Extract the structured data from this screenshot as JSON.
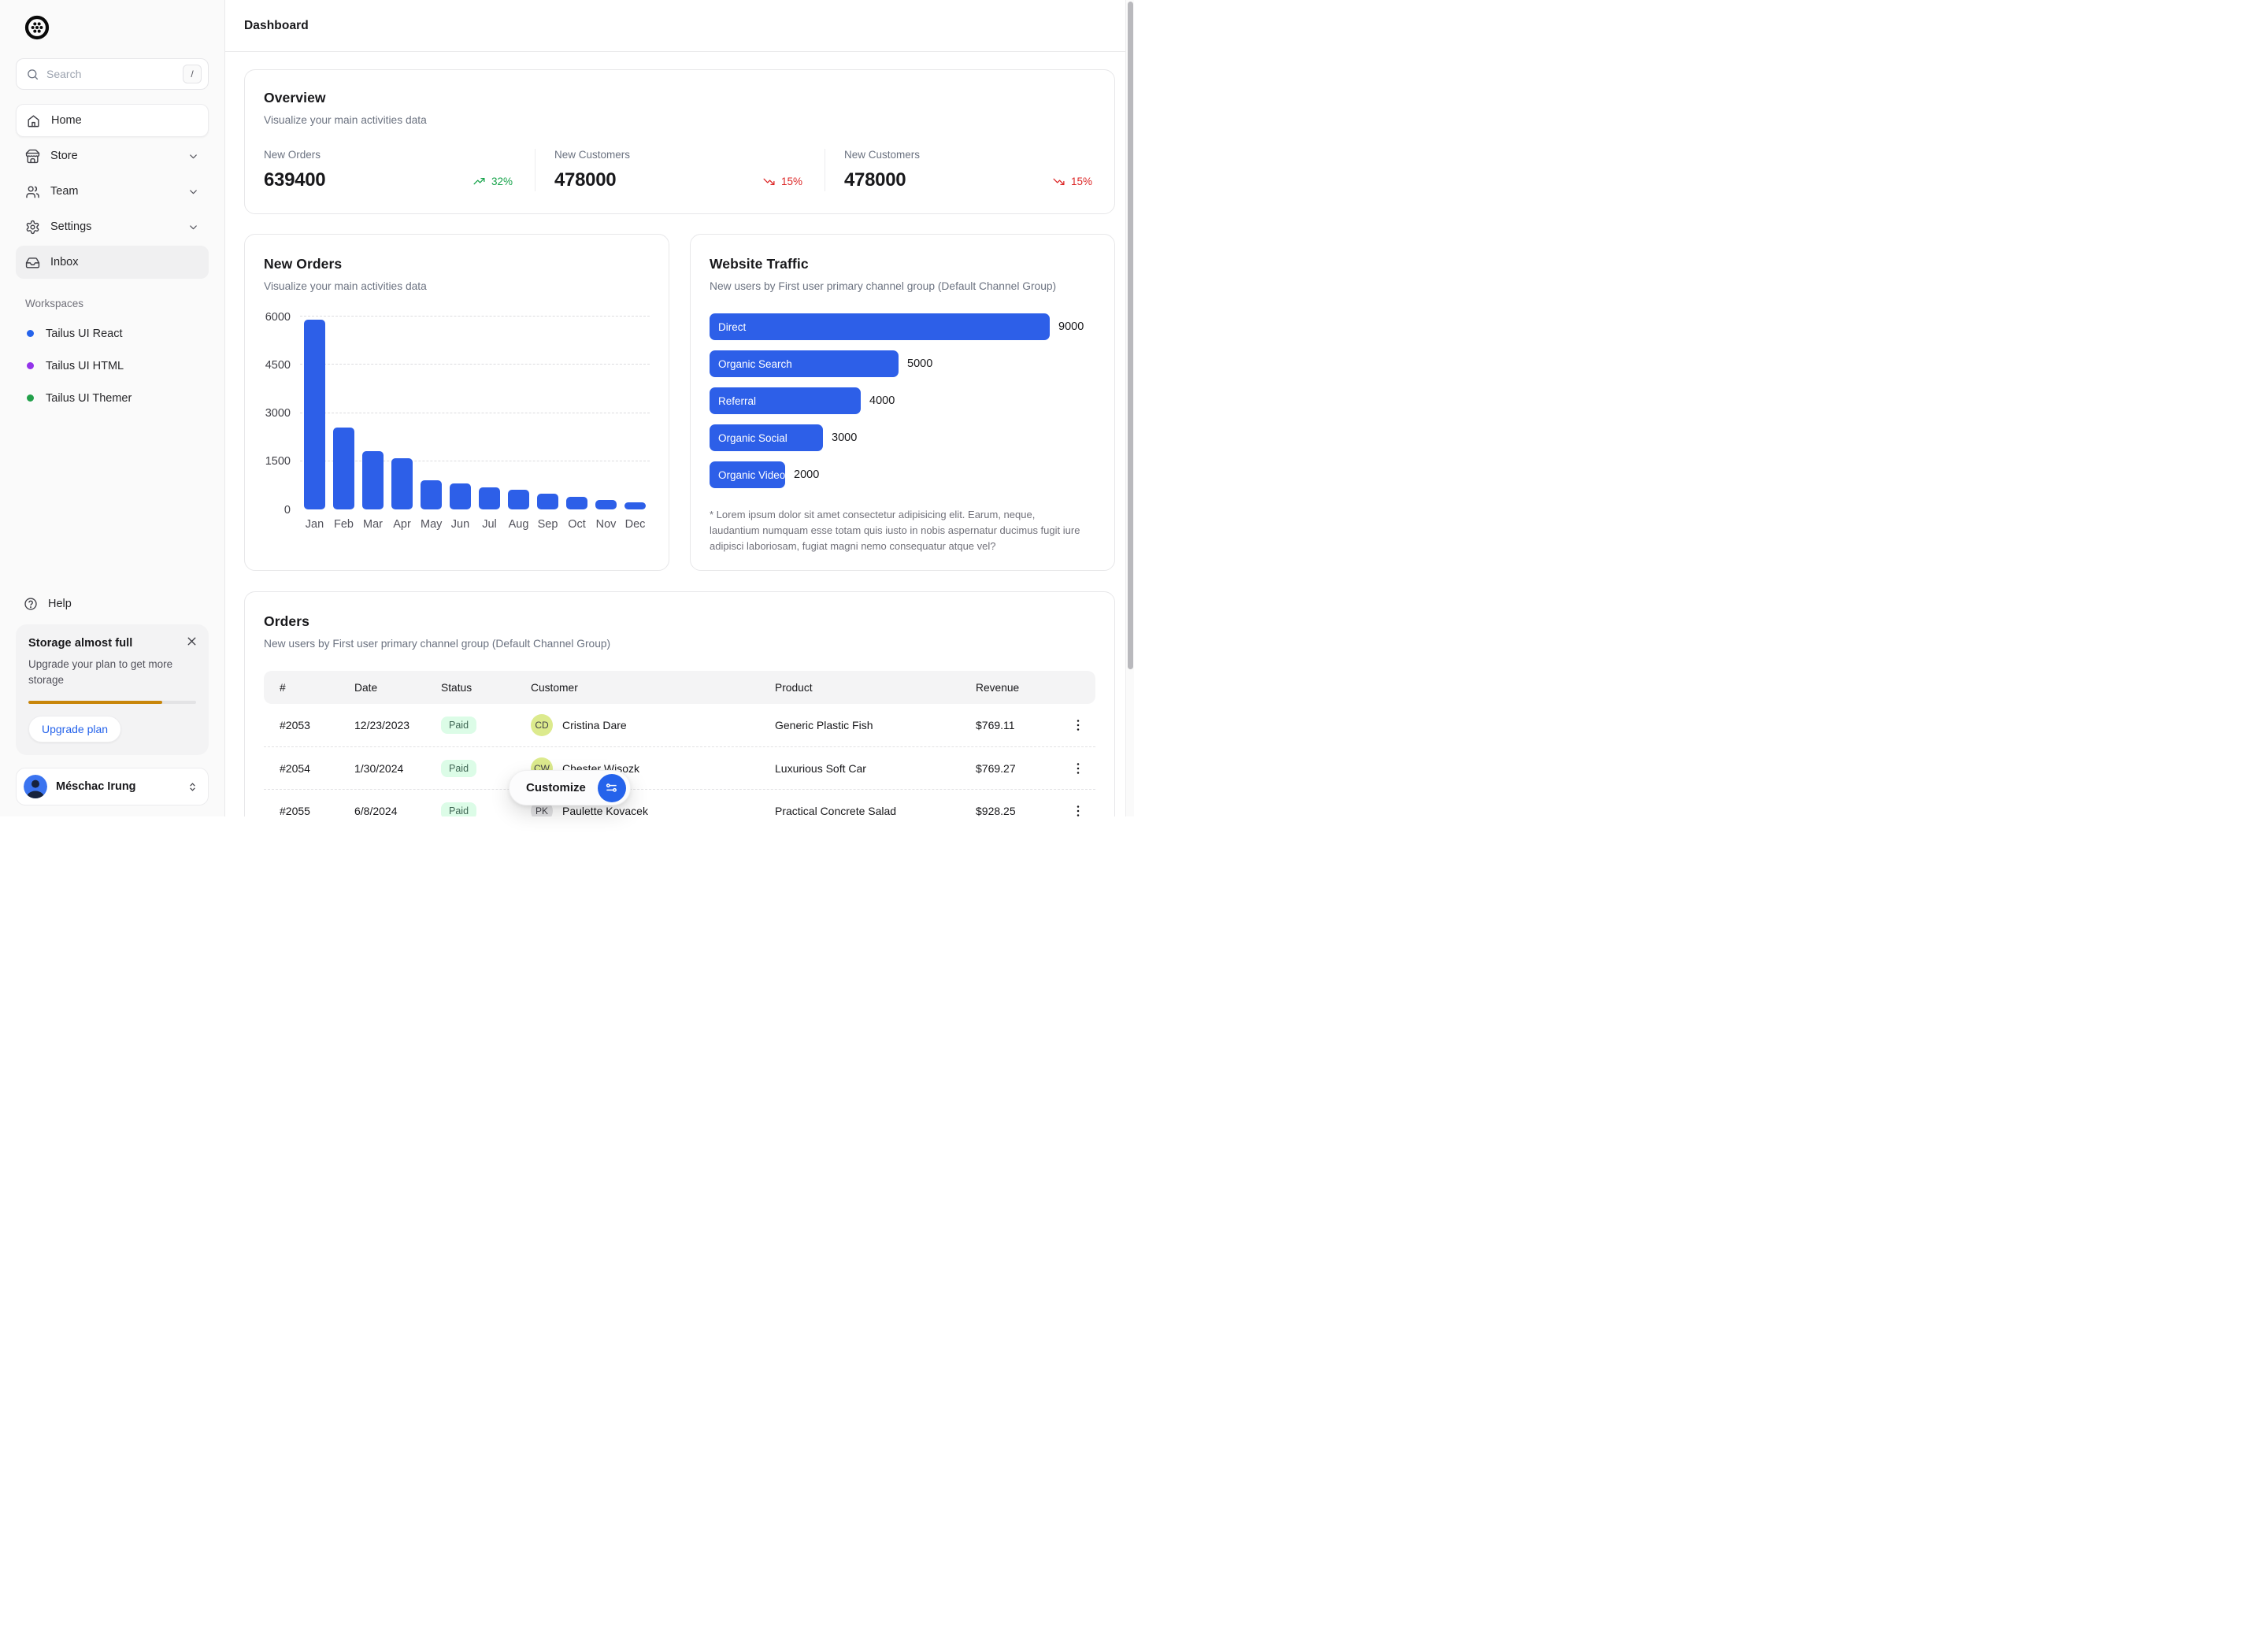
{
  "app": {
    "title": "Dashboard"
  },
  "colors": {
    "accent": "#2d5fe8",
    "positive": "#16a34a",
    "negative": "#dc2626",
    "storage_bar": "#c8860a",
    "paid_badge_bg": "#dcfce7",
    "paid_badge_text": "#3f6654"
  },
  "sidebar": {
    "logo": "tailus-logo",
    "search": {
      "placeholder": "Search",
      "shortcut": "/"
    },
    "items": [
      {
        "label": "Home",
        "icon": "home-icon",
        "state": "active",
        "chevron": false
      },
      {
        "label": "Store",
        "icon": "store-icon",
        "state": "default",
        "chevron": true
      },
      {
        "label": "Team",
        "icon": "team-icon",
        "state": "default",
        "chevron": true
      },
      {
        "label": "Settings",
        "icon": "settings-icon",
        "state": "default",
        "chevron": true
      },
      {
        "label": "Inbox",
        "icon": "inbox-icon",
        "state": "highlight",
        "chevron": false
      }
    ],
    "workspaces": {
      "label": "Workspaces",
      "items": [
        {
          "label": "Tailus UI React",
          "color": "#2563eb"
        },
        {
          "label": "Tailus UI HTML",
          "color": "#9333ea"
        },
        {
          "label": "Tailus UI Themer",
          "color": "#22a04a"
        }
      ]
    },
    "help": {
      "label": "Help"
    },
    "storage": {
      "title": "Storage almost full",
      "description": "Upgrade your plan to get more storage",
      "progress_percent": 80,
      "button": "Upgrade plan"
    },
    "user": {
      "name": "Méschac Irung"
    }
  },
  "overview": {
    "title": "Overview",
    "subtitle": "Visualize your main activities data",
    "stats": [
      {
        "label": "New Orders",
        "value": "639400",
        "delta": "32%",
        "direction": "up"
      },
      {
        "label": "New Customers",
        "value": "478000",
        "delta": "15%",
        "direction": "down"
      },
      {
        "label": "New Customers",
        "value": "478000",
        "delta": "15%",
        "direction": "down"
      }
    ]
  },
  "chart_data": [
    {
      "type": "bar",
      "title": "New Orders",
      "subtitle": "Visualize your main activities data",
      "categories": [
        "Jan",
        "Feb",
        "Mar",
        "Apr",
        "May",
        "Jun",
        "Jul",
        "Aug",
        "Sep",
        "Oct",
        "Nov",
        "Dec"
      ],
      "values": [
        5900,
        2550,
        1800,
        1580,
        900,
        800,
        690,
        610,
        500,
        390,
        300,
        210
      ],
      "xlabel": "",
      "ylabel": "",
      "ylim": [
        0,
        6000
      ],
      "yticks": [
        0,
        1500,
        3000,
        4500,
        6000
      ],
      "grid": "dashed-horizontal",
      "bar_color": "#2d5fe8"
    },
    {
      "type": "bar",
      "orientation": "horizontal",
      "title": "Website Traffic",
      "subtitle": "New users by First user primary channel group (Default Channel Group)",
      "categories": [
        "Direct",
        "Organic Search",
        "Referral",
        "Organic Social",
        "Organic Video"
      ],
      "values": [
        9000,
        5000,
        4000,
        3000,
        2000
      ],
      "xlim": [
        0,
        10000
      ],
      "bar_color": "#2d5fe8",
      "footnote": "* Lorem ipsum dolor sit amet consectetur adipisicing elit. Earum, neque, laudantium numquam esse totam quis iusto in nobis aspernatur ducimus fugit iure adipisci laboriosam, fugiat magni nemo consequatur atque vel?"
    }
  ],
  "orders": {
    "title": "Orders",
    "subtitle": "New users by First user primary channel group (Default Channel Group)",
    "columns": [
      "#",
      "Date",
      "Status",
      "Customer",
      "Product",
      "Revenue"
    ],
    "rows": [
      {
        "id": "#2053",
        "date": "12/23/2023",
        "status": "Paid",
        "customer": "Cristina Dare",
        "initials": "CD",
        "avatar_color": "#dcea8d",
        "product": "Generic Plastic Fish",
        "revenue": "$769.11"
      },
      {
        "id": "#2054",
        "date": "1/30/2024",
        "status": "Paid",
        "customer": "Chester Wisozk",
        "initials": "CW",
        "avatar_color": "#dcea8d",
        "product": "Luxurious Soft Car",
        "revenue": "$769.27"
      },
      {
        "id": "#2055",
        "date": "6/8/2024",
        "status": "Paid",
        "customer": "Paulette Kovacek",
        "initials": "PK",
        "avatar_color": "#e2e2e4",
        "product": "Practical Concrete Salad",
        "revenue": "$928.25"
      }
    ]
  },
  "customize": {
    "label": "Customize"
  }
}
